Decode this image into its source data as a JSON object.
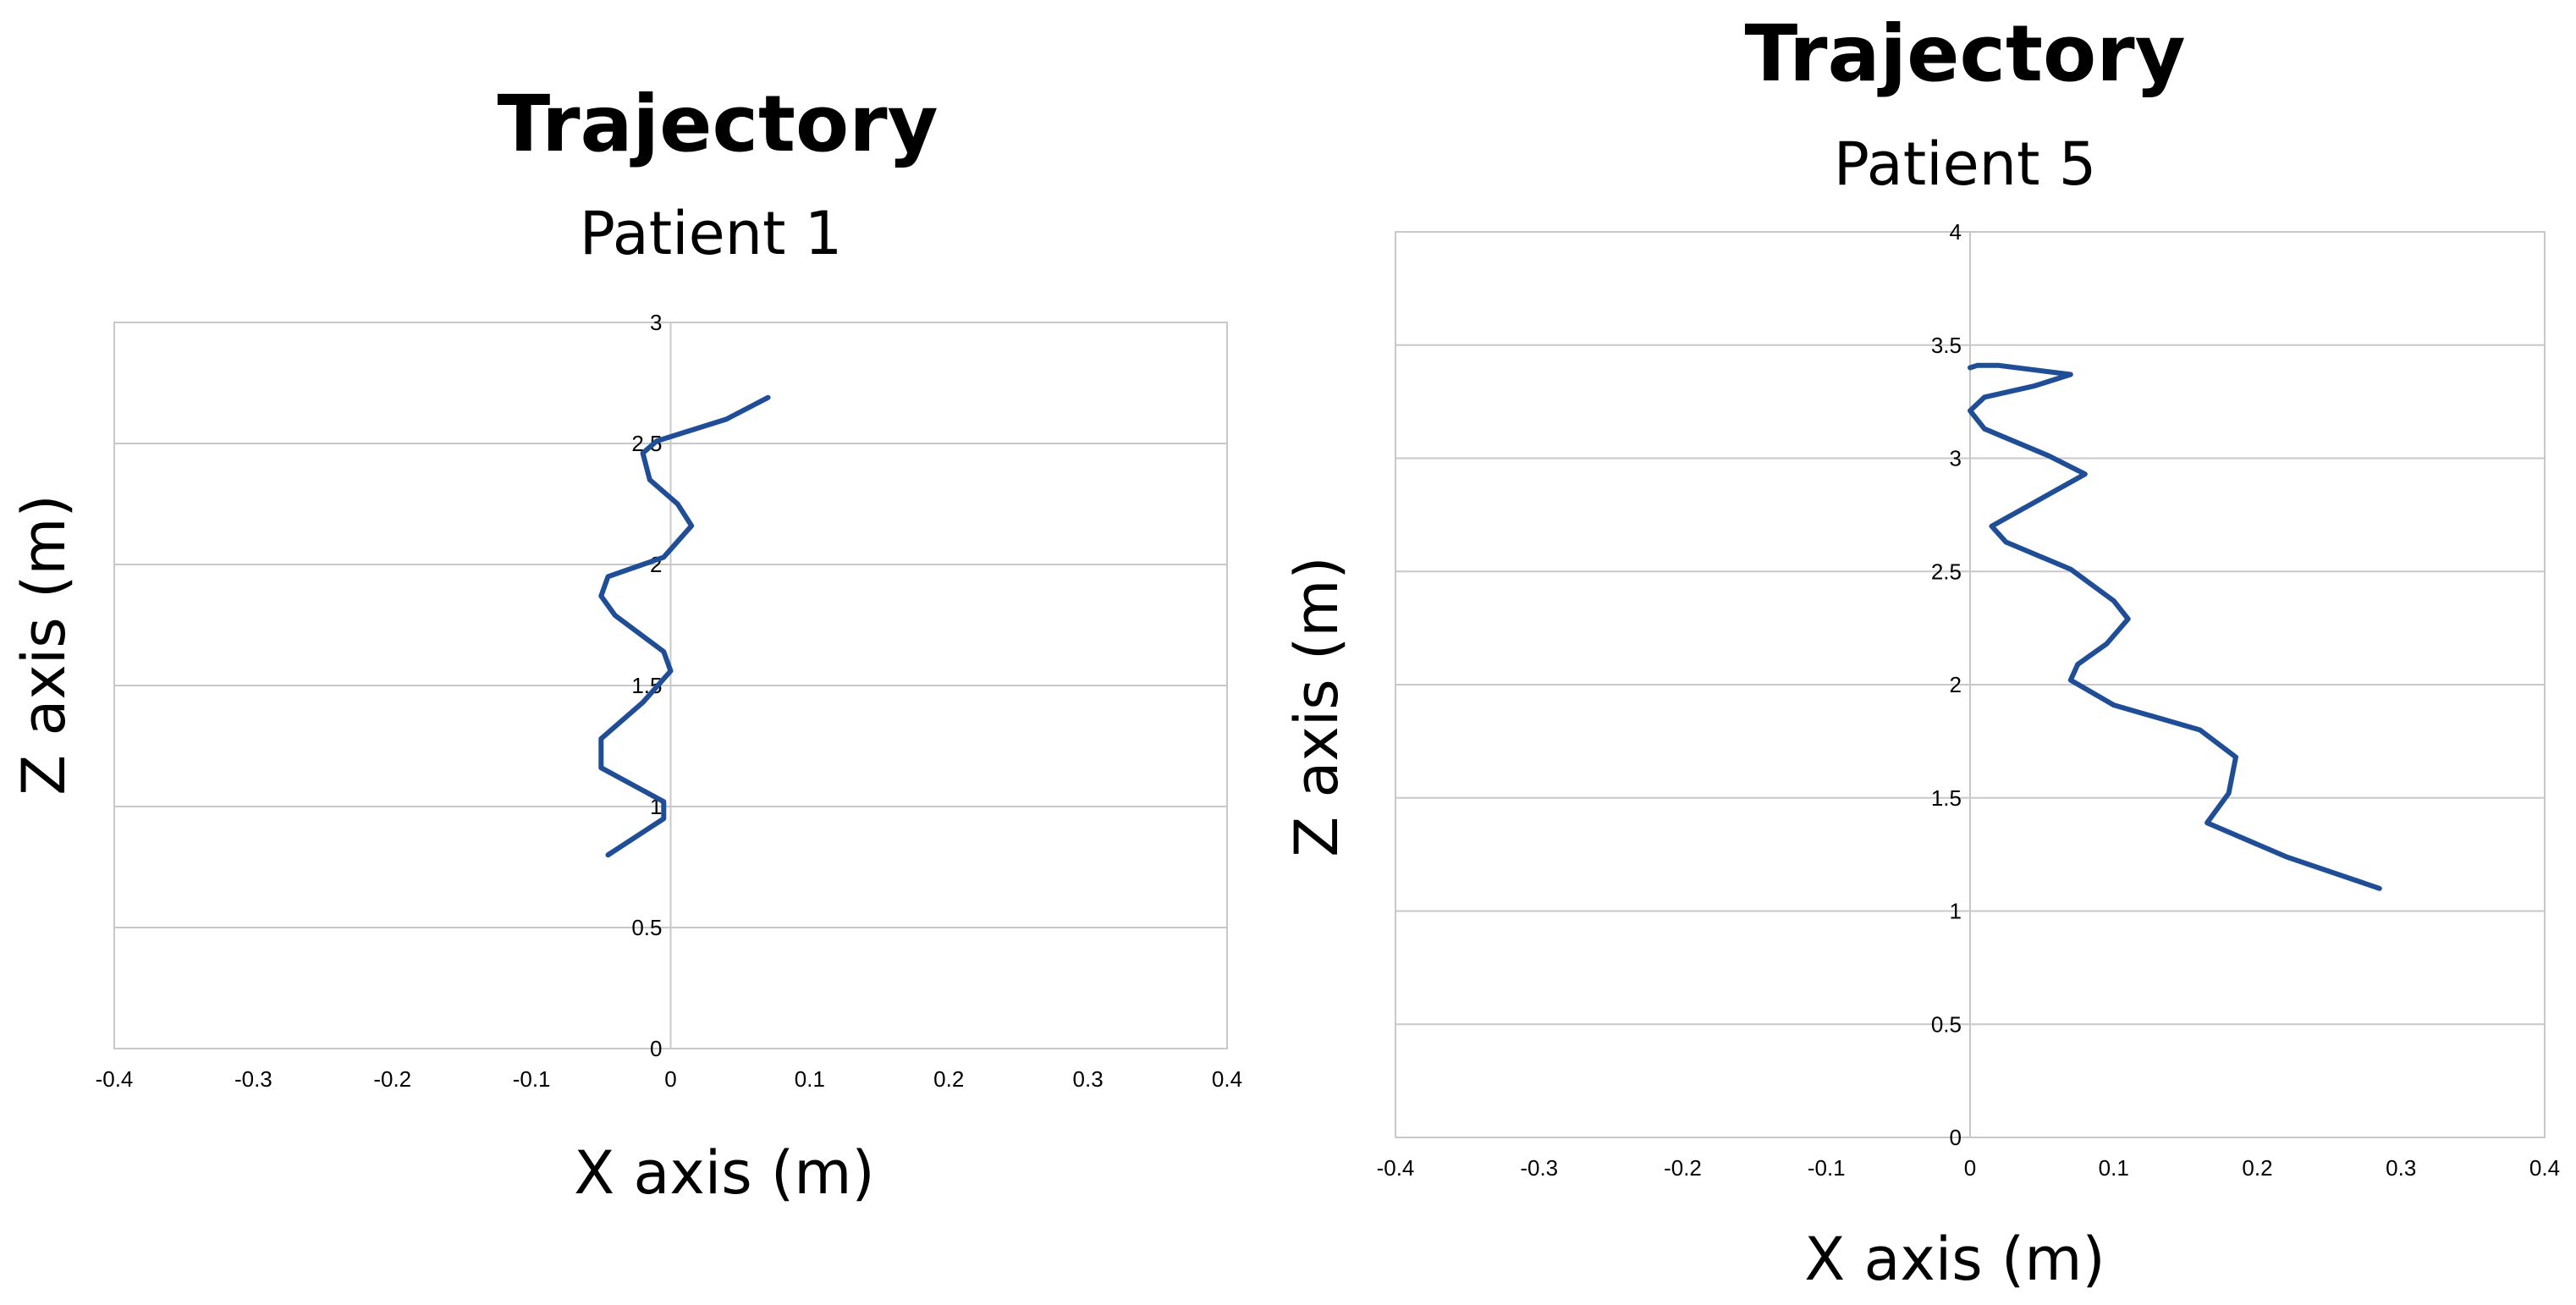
{
  "chart_data": [
    {
      "type": "line",
      "title": "Trajectory",
      "subtitle": "Patient 1",
      "xlabel": "X axis (m)",
      "ylabel": "Z axis (m)",
      "xlim": [
        -0.4,
        0.4
      ],
      "ylim": [
        0,
        3
      ],
      "x_ticks": [
        -0.4,
        -0.3,
        -0.2,
        -0.1,
        0,
        0.1,
        0.2,
        0.3,
        0.4
      ],
      "y_ticks": [
        0,
        0.5,
        1,
        1.5,
        2,
        2.5,
        3
      ],
      "x_tick_labels": [
        "-0.4",
        "-0.3",
        "-0.2",
        "-0.1",
        "0",
        "0.1",
        "0.2",
        "0.3",
        "0.4"
      ],
      "y_tick_labels": [
        "0",
        "0.5",
        "1",
        "1.5",
        "2",
        "2.5",
        "3"
      ],
      "grid": "horizontal",
      "legend": "none",
      "series": [
        {
          "color": "#1f4e96",
          "points": [
            [
              0.07,
              2.69
            ],
            [
              0.04,
              2.6
            ],
            [
              -0.01,
              2.51
            ],
            [
              -0.02,
              2.46
            ],
            [
              -0.015,
              2.35
            ],
            [
              0.005,
              2.25
            ],
            [
              0.015,
              2.16
            ],
            [
              -0.005,
              2.03
            ],
            [
              -0.045,
              1.95
            ],
            [
              -0.05,
              1.87
            ],
            [
              -0.04,
              1.79
            ],
            [
              -0.005,
              1.64
            ],
            [
              0.0,
              1.56
            ],
            [
              -0.02,
              1.43
            ],
            [
              -0.05,
              1.28
            ],
            [
              -0.05,
              1.16
            ],
            [
              -0.005,
              1.02
            ],
            [
              -0.005,
              0.95
            ],
            [
              -0.045,
              0.8
            ]
          ]
        }
      ]
    },
    {
      "type": "line",
      "title": "Trajectory",
      "subtitle": "Patient 5",
      "xlabel": "X axis (m)",
      "ylabel": "Z axis (m)",
      "xlim": [
        -0.4,
        0.4
      ],
      "ylim": [
        0,
        4
      ],
      "x_ticks": [
        -0.4,
        -0.3,
        -0.2,
        -0.1,
        0,
        0.1,
        0.2,
        0.3,
        0.4
      ],
      "y_ticks": [
        0,
        0.5,
        1,
        1.5,
        2,
        2.5,
        3,
        3.5,
        4
      ],
      "x_tick_labels": [
        "-0.4",
        "-0.3",
        "-0.2",
        "-0.1",
        "0",
        "0.1",
        "0.2",
        "0.3",
        "0.4"
      ],
      "y_tick_labels": [
        "0",
        "0.5",
        "1",
        "1.5",
        "2",
        "2.5",
        "3",
        "3.5",
        "4"
      ],
      "grid": "horizontal",
      "legend": "none",
      "series": [
        {
          "color": "#1f4e96",
          "points": [
            [
              0.285,
              1.1
            ],
            [
              0.22,
              1.24
            ],
            [
              0.165,
              1.39
            ],
            [
              0.18,
              1.52
            ],
            [
              0.185,
              1.68
            ],
            [
              0.16,
              1.8
            ],
            [
              0.1,
              1.91
            ],
            [
              0.07,
              2.02
            ],
            [
              0.075,
              2.09
            ],
            [
              0.095,
              2.18
            ],
            [
              0.11,
              2.29
            ],
            [
              0.1,
              2.37
            ],
            [
              0.07,
              2.51
            ],
            [
              0.025,
              2.63
            ],
            [
              0.015,
              2.7
            ],
            [
              0.08,
              2.93
            ],
            [
              0.055,
              3.01
            ],
            [
              0.01,
              3.13
            ],
            [
              0.0,
              3.21
            ],
            [
              0.01,
              3.27
            ],
            [
              0.045,
              3.32
            ],
            [
              0.07,
              3.37
            ],
            [
              0.02,
              3.41
            ],
            [
              0.005,
              3.41
            ],
            [
              0.0,
              3.4
            ]
          ]
        }
      ]
    }
  ]
}
